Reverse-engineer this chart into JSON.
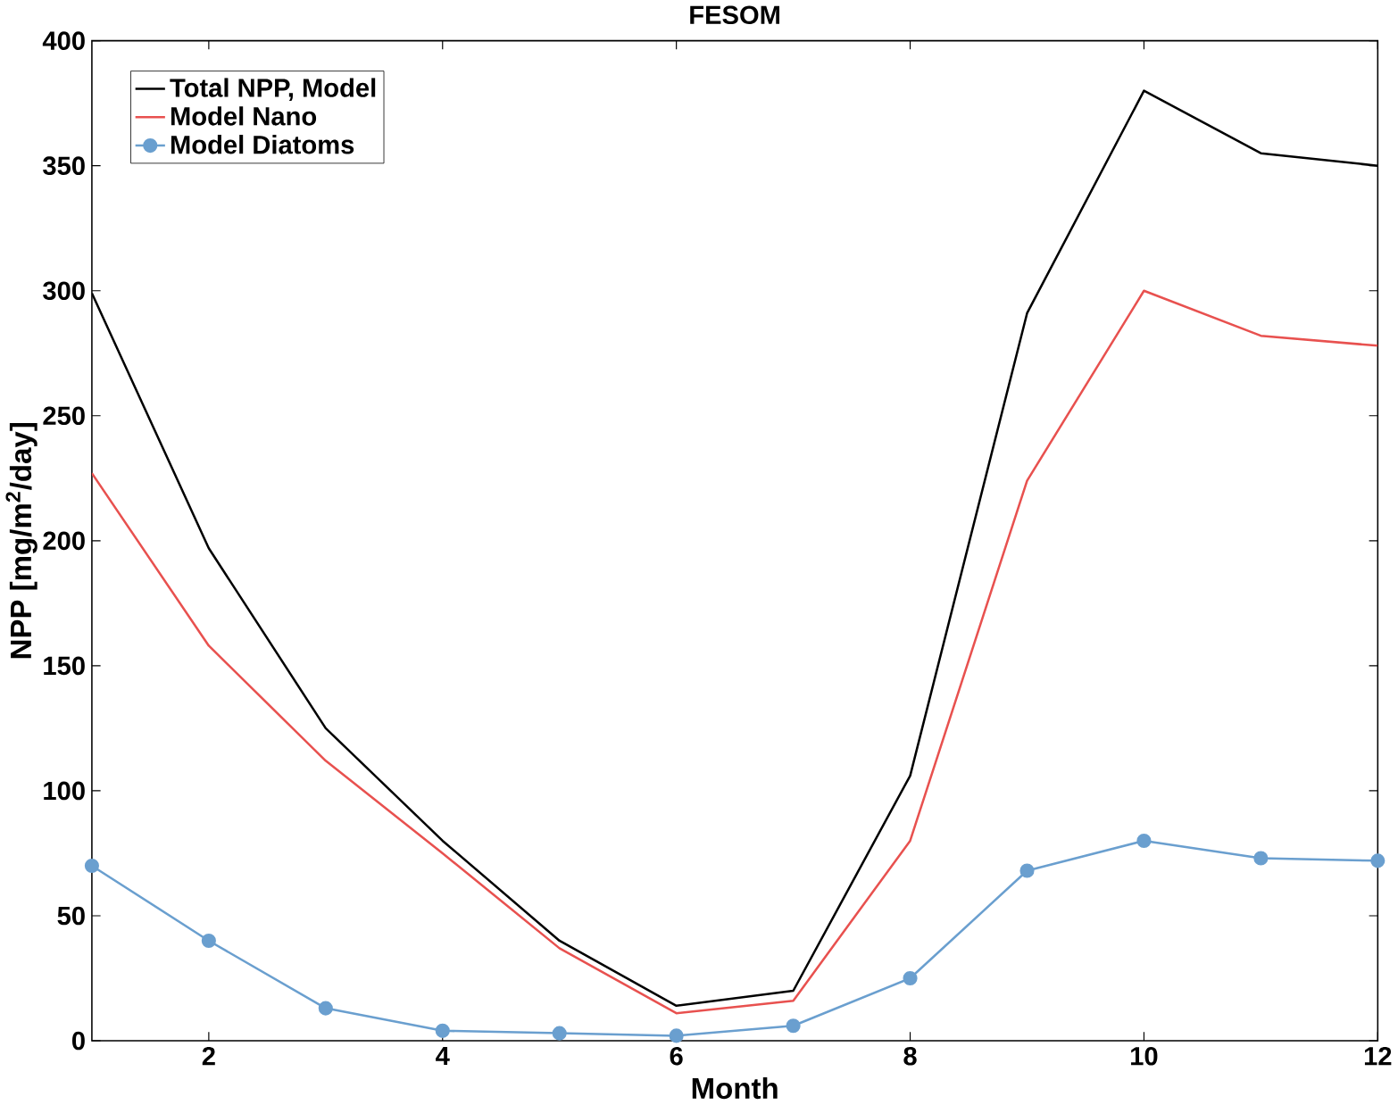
{
  "chart_data": {
    "type": "line",
    "title": "FESOM",
    "xlabel": "Month",
    "ylabel": "NPP [mg/m$^{2}$/day]",
    "x": [
      1,
      2,
      3,
      4,
      5,
      6,
      7,
      8,
      9,
      10,
      11,
      12
    ],
    "series": [
      {
        "name": "Total NPP, Model",
        "color": "#000000",
        "marker": "none",
        "values": [
          299,
          197,
          125,
          80,
          40,
          14,
          20,
          106,
          291,
          380,
          355,
          350
        ]
      },
      {
        "name": "Model Nano",
        "color": "#e8514f",
        "marker": "none",
        "values": [
          227,
          158,
          112,
          75,
          37,
          11,
          16,
          80,
          224,
          300,
          282,
          278
        ]
      },
      {
        "name": "Model Diatoms",
        "color": "#6a9fcf",
        "marker": "circle",
        "values": [
          70,
          40,
          13,
          4,
          3,
          2,
          6,
          25,
          68,
          80,
          73,
          72
        ]
      }
    ],
    "xlim": [
      1,
      12
    ],
    "ylim": [
      0,
      400
    ],
    "xticks": [
      2,
      4,
      6,
      8,
      10,
      12
    ],
    "yticks": [
      0,
      50,
      100,
      150,
      200,
      250,
      300,
      350,
      400
    ],
    "grid": false,
    "legend": "top left"
  }
}
